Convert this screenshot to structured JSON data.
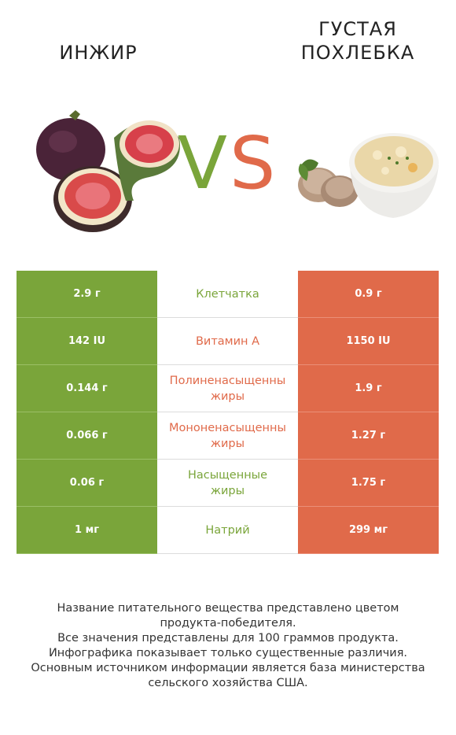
{
  "left_product": {
    "name": "ИНЖИР",
    "color": "#7aa53a"
  },
  "right_product": {
    "name": "ГУСТАЯ ПОХЛЕБКА",
    "color": "#e06a4a"
  },
  "vs": {
    "v": "V",
    "s": "S"
  },
  "rows": [
    {
      "nutrient": "Клетчатка",
      "left": "2.9 г",
      "right": "0.9 г",
      "winner": "left"
    },
    {
      "nutrient": "Витамин A",
      "left": "142 IU",
      "right": "1150 IU",
      "winner": "right"
    },
    {
      "nutrient": "Полиненасыщенны\nжиры",
      "left": "0.144 г",
      "right": "1.9 г",
      "winner": "right"
    },
    {
      "nutrient": "Мононенасыщенны\nжиры",
      "left": "0.066 г",
      "right": "1.27 г",
      "winner": "right"
    },
    {
      "nutrient": "Насыщенные\nжиры",
      "left": "0.06 г",
      "right": "1.75 г",
      "winner": "left"
    },
    {
      "nutrient": "Натрий",
      "left": "1 мг",
      "right": "299 мг",
      "winner": "left"
    }
  ],
  "footer": [
    "Название питательного вещества представлено цветом",
    "продукта-победителя.",
    "Все значения представлены для 100 граммов продукта.",
    "Инфографика показывает только существенные различия.",
    "Основным источником информации является база министерства",
    "сельского хозяйства США."
  ]
}
